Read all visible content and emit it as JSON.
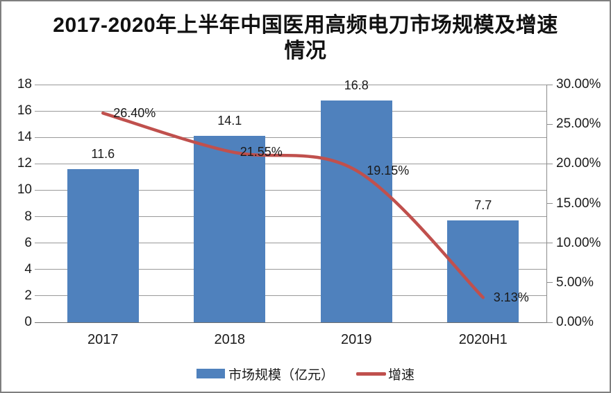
{
  "title": {
    "line1": "2017-2020年上半年中国医用高频电刀市场规模及增速",
    "line2": "情况"
  },
  "chart_data": {
    "type": "bar",
    "subtype": "combo-bar-line-dual-axis",
    "title": "2017-2020年上半年中国医用高频电刀市场规模及增速情况",
    "categories": [
      "2017",
      "2018",
      "2019",
      "2020H1"
    ],
    "series": [
      {
        "name": "市场规模（亿元）",
        "type": "bar",
        "axis": "left",
        "values": [
          11.6,
          14.1,
          16.8,
          7.7
        ],
        "labels": [
          "11.6",
          "14.1",
          "16.8",
          "7.7"
        ],
        "color": "#4F81BD"
      },
      {
        "name": "增速",
        "type": "line",
        "axis": "right",
        "values": [
          26.4,
          21.55,
          19.15,
          3.13
        ],
        "labels": [
          "26.40%",
          "21.55%",
          "19.15%",
          "3.13%"
        ],
        "color": "#C0504D"
      }
    ],
    "left_axis": {
      "min": 0,
      "max": 18,
      "step": 2,
      "ticks": [
        "0",
        "2",
        "4",
        "6",
        "8",
        "10",
        "12",
        "14",
        "16",
        "18"
      ]
    },
    "right_axis": {
      "min": 0,
      "max": 30,
      "step": 5,
      "ticks": [
        "0.00%",
        "5.00%",
        "10.00%",
        "15.00%",
        "20.00%",
        "25.00%",
        "30.00%"
      ]
    },
    "grid": "horizontal-only",
    "legend_position": "bottom"
  },
  "legend": {
    "bar_label": "市场规模（亿元）",
    "line_label": "增速"
  },
  "colors": {
    "bar": "#4F81BD",
    "line": "#C0504D",
    "gridline": "#999999",
    "axis": "#8c8c8c",
    "frame_border": "#7f7f7f",
    "text": "#1a1a1a"
  }
}
